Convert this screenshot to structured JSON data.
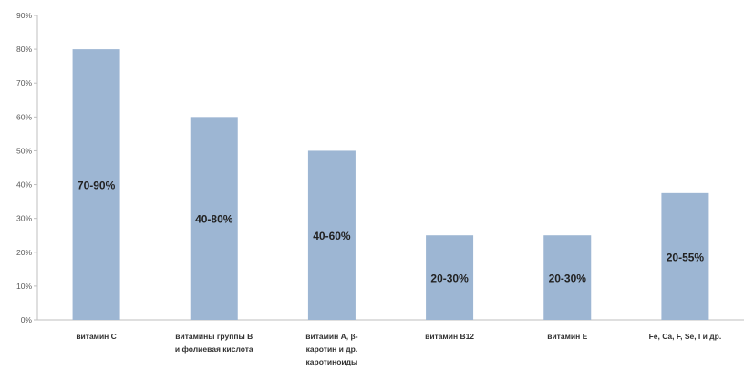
{
  "chart_data": {
    "type": "bar",
    "categories": [
      [
        "витамин С"
      ],
      [
        "витамины группы В",
        "и фолиевая кислота"
      ],
      [
        "витамин А, β-",
        "каротин и др.",
        "каротиноиды"
      ],
      [
        "витамин В12"
      ],
      [
        "витамин Е"
      ],
      [
        "Fe, Ca, F, Se, I и др."
      ]
    ],
    "values": [
      80,
      60,
      50,
      25,
      25,
      37.5
    ],
    "data_labels": [
      "70-90%",
      "40-80%",
      "40-60%",
      "20-30%",
      "20-30%",
      "20-55%"
    ],
    "y_ticks": [
      "0%",
      "10%",
      "20%",
      "30%",
      "40%",
      "50%",
      "60%",
      "70%",
      "80%",
      "90%"
    ],
    "ylim": [
      0,
      90
    ],
    "grid": false,
    "legend": "none",
    "title": "",
    "xlabel": "",
    "ylabel": "",
    "bar_color": "#9db6d3",
    "axis_color": "#bfbfbf"
  }
}
